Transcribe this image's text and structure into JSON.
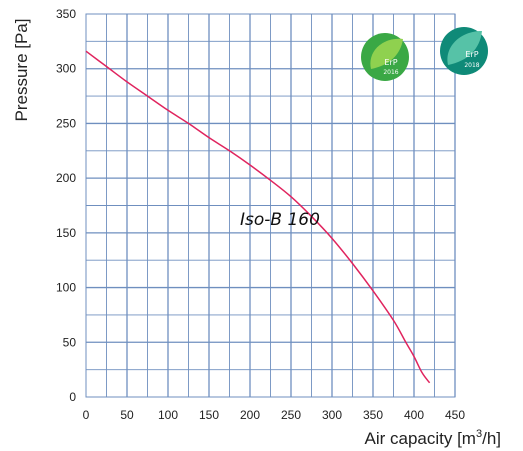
{
  "chart_data": {
    "type": "line",
    "xlabel_main": "Air capacity [m",
    "xlabel_sup": "3",
    "xlabel_end": "/h]",
    "ylabel": "Pressure [Pa]",
    "xlim": [
      0,
      450
    ],
    "ylim": [
      0,
      350
    ],
    "x_ticks": [
      0,
      50,
      100,
      150,
      200,
      250,
      300,
      350,
      400,
      450
    ],
    "y_ticks": [
      0,
      50,
      100,
      150,
      200,
      250,
      300,
      350
    ],
    "grid": true,
    "series": [
      {
        "name": "Iso-B 160",
        "color": "#e0245e",
        "points": [
          [
            0,
            316
          ],
          [
            25,
            302
          ],
          [
            50,
            288
          ],
          [
            75,
            275
          ],
          [
            100,
            262
          ],
          [
            125,
            250
          ],
          [
            150,
            237
          ],
          [
            175,
            225
          ],
          [
            200,
            212
          ],
          [
            225,
            198
          ],
          [
            250,
            183
          ],
          [
            275,
            165
          ],
          [
            300,
            145
          ],
          [
            325,
            122
          ],
          [
            350,
            97
          ],
          [
            375,
            70
          ],
          [
            390,
            50
          ],
          [
            400,
            37
          ],
          [
            410,
            22
          ],
          [
            419,
            13
          ]
        ]
      }
    ],
    "curve_label": "Iso-B 160"
  },
  "badges": [
    {
      "text_top": "ErP",
      "text_bottom": "2016",
      "color": "#3aa845",
      "leaf": "#8fd14f"
    },
    {
      "text_top": "ErP",
      "text_bottom": "2018",
      "color": "#0f8a78",
      "leaf": "#56c2a7"
    }
  ],
  "colors": {
    "grid": "#6f8fbf",
    "axis": "#333333",
    "curve": "#e0245e"
  }
}
